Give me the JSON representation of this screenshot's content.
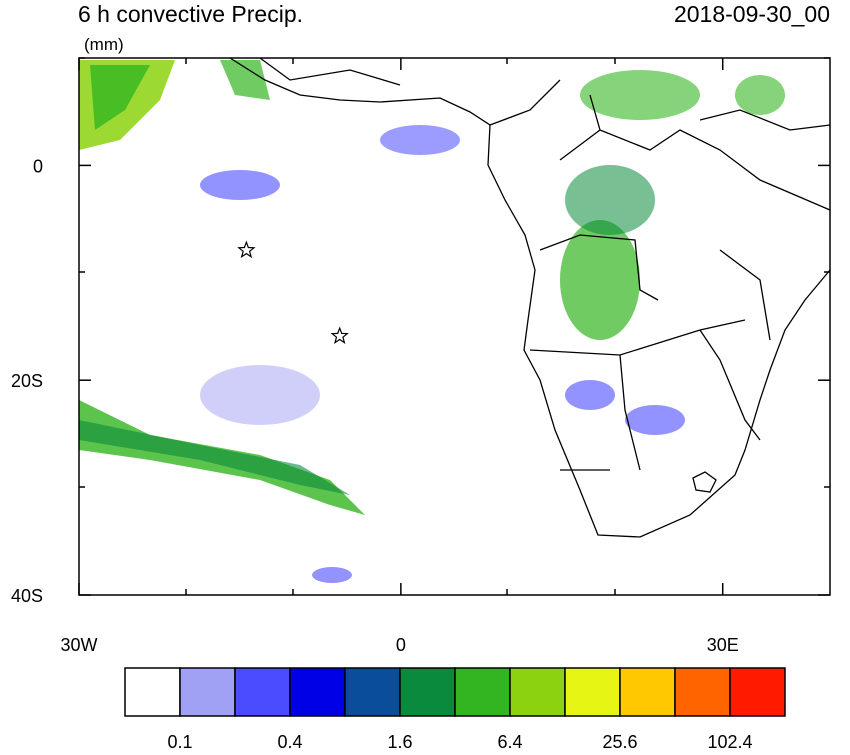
{
  "header": {
    "title": "6 h convective Precip.",
    "date": "2018-09-30_00",
    "units": "(mm)"
  },
  "map": {
    "xlim": [
      -30,
      40
    ],
    "ylim": [
      -40,
      10
    ],
    "xticks": [
      {
        "value": -30,
        "label": "30W"
      },
      0,
      {
        "value": 30,
        "label": "30E"
      }
    ],
    "yticks": [
      0,
      {
        "value": -20,
        "label": "20S"
      },
      {
        "value": -40,
        "label": "40S"
      }
    ],
    "stars": [
      {
        "lon": -14.4,
        "lat": -7.9
      },
      {
        "lon": -5.7,
        "lat": -15.9
      }
    ]
  },
  "colorbar": {
    "colors": [
      "#ffffff",
      "#a0a0f5",
      "#4b4bff",
      "#0000e6",
      "#0a4e9a",
      "#0a8a3c",
      "#33b521",
      "#8cd20f",
      "#e6f514",
      "#ffc800",
      "#ff6400",
      "#ff1a00"
    ],
    "labels": [
      0.1,
      0.4,
      1.6,
      6.4,
      25.6,
      102.4
    ]
  }
}
